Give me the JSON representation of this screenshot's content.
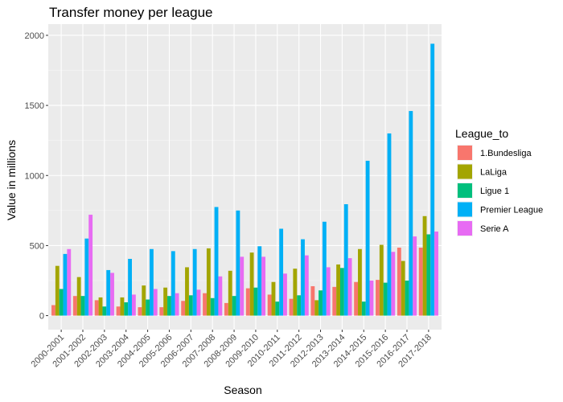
{
  "chart_data": {
    "type": "bar",
    "title": "Transfer money per league",
    "xlabel": "Season",
    "ylabel": "Value in millions",
    "ylim": [
      -100,
      2080
    ],
    "yticks": [
      0,
      500,
      1000,
      1500,
      2000
    ],
    "grid": true,
    "legend_title": "League_to",
    "legend_position": "right",
    "categories": [
      "2000-2001",
      "2001-2002",
      "2002-2003",
      "2003-2004",
      "2004-2005",
      "2005-2006",
      "2006-2007",
      "2007-2008",
      "2008-2009",
      "2009-2010",
      "2010-2011",
      "2011-2012",
      "2012-2013",
      "2013-2014",
      "2014-2015",
      "2015-2016",
      "2016-2017",
      "2017-2018"
    ],
    "series": [
      {
        "name": "1.Bundesliga",
        "color": "#F8766D",
        "values": [
          75,
          140,
          110,
          65,
          60,
          60,
          105,
          160,
          90,
          195,
          150,
          120,
          210,
          205,
          240,
          255,
          485,
          485
        ]
      },
      {
        "name": "LaLiga",
        "color": "#A3A500",
        "values": [
          355,
          275,
          130,
          130,
          215,
          200,
          345,
          480,
          320,
          450,
          240,
          335,
          110,
          365,
          475,
          505,
          390,
          710
        ]
      },
      {
        "name": "Ligue 1",
        "color": "#00BF7D",
        "values": [
          190,
          140,
          65,
          95,
          115,
          140,
          145,
          125,
          140,
          200,
          100,
          145,
          180,
          340,
          100,
          235,
          250,
          580
        ]
      },
      {
        "name": "Premier League",
        "color": "#00B0F6",
        "values": [
          440,
          550,
          325,
          405,
          475,
          460,
          475,
          775,
          750,
          495,
          620,
          545,
          670,
          795,
          1105,
          1300,
          1460,
          1940
        ]
      },
      {
        "name": "Serie A",
        "color": "#E76BF3",
        "values": [
          475,
          720,
          305,
          150,
          190,
          160,
          185,
          280,
          420,
          420,
          300,
          430,
          345,
          410,
          250,
          455,
          565,
          600
        ]
      }
    ]
  }
}
